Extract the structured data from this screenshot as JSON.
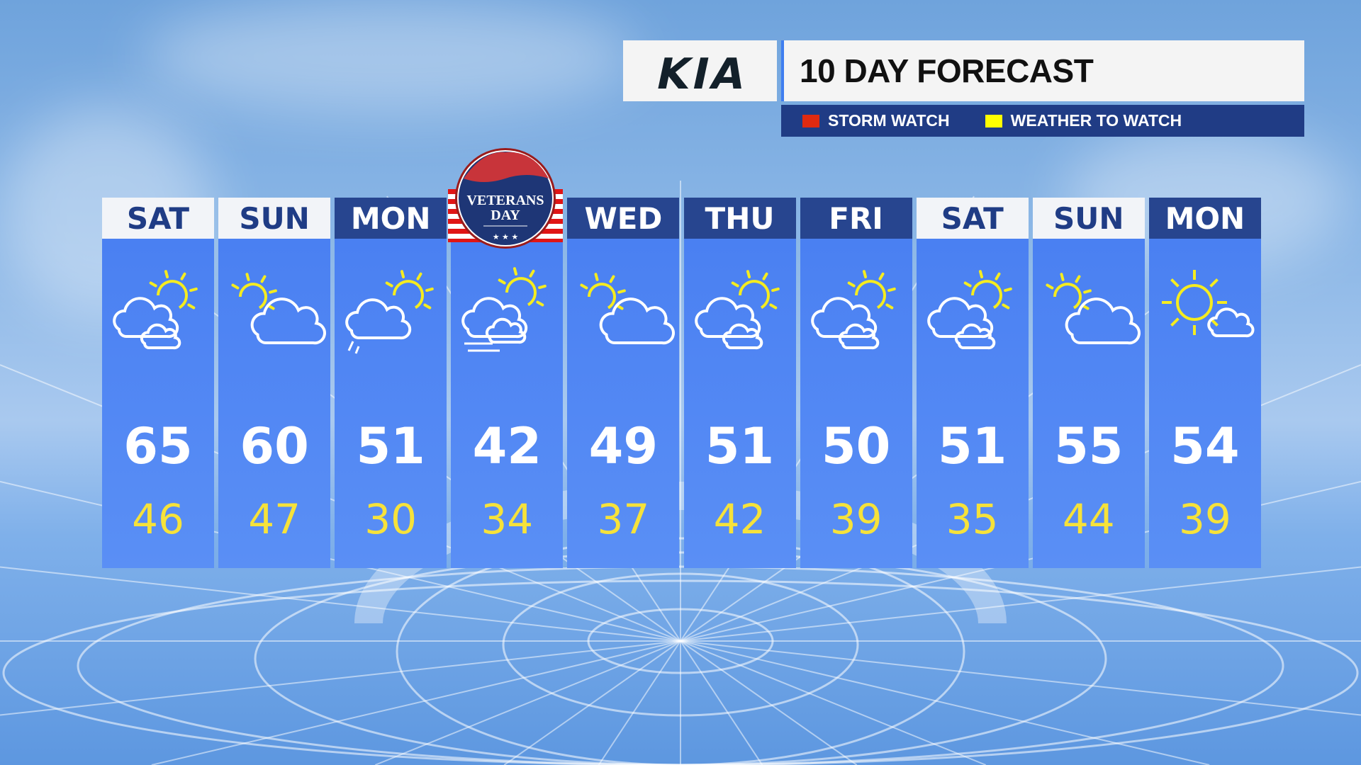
{
  "header": {
    "brand": "KIA",
    "title": "10 DAY FORECAST"
  },
  "legend": [
    {
      "label": "STORM WATCH",
      "color": "#e02a10"
    },
    {
      "label": "WEATHER TO WATCH",
      "color": "#ffff00"
    }
  ],
  "holiday_badge": {
    "text_line1": "VETERANS",
    "text_line2": "DAY"
  },
  "colors": {
    "high": "#ffffff",
    "low": "#f6e23a",
    "panel": "#4a80f2",
    "header_dark": "#27458f"
  },
  "days": [
    {
      "day": "SAT",
      "style": "light",
      "high": "65",
      "low": "46",
      "icon": "partly-cloudy-sun-clouds"
    },
    {
      "day": "SUN",
      "style": "light",
      "high": "60",
      "low": "47",
      "icon": "mostly-cloudy"
    },
    {
      "day": "MON",
      "style": "dark",
      "high": "51",
      "low": "30",
      "icon": "cloudy-showers"
    },
    {
      "day": "",
      "style": "none",
      "high": "42",
      "low": "34",
      "icon": "clouds-wind"
    },
    {
      "day": "WED",
      "style": "dark",
      "high": "49",
      "low": "37",
      "icon": "mostly-cloudy"
    },
    {
      "day": "THU",
      "style": "dark",
      "high": "51",
      "low": "42",
      "icon": "partly-cloudy-sun-clouds"
    },
    {
      "day": "FRI",
      "style": "dark",
      "high": "50",
      "low": "39",
      "icon": "partly-cloudy-sun-clouds"
    },
    {
      "day": "SAT",
      "style": "light",
      "high": "51",
      "low": "35",
      "icon": "partly-cloudy-sun-clouds"
    },
    {
      "day": "SUN",
      "style": "light",
      "high": "55",
      "low": "44",
      "icon": "mostly-cloudy"
    },
    {
      "day": "MON",
      "style": "dark",
      "high": "54",
      "low": "39",
      "icon": "mostly-sunny"
    }
  ]
}
